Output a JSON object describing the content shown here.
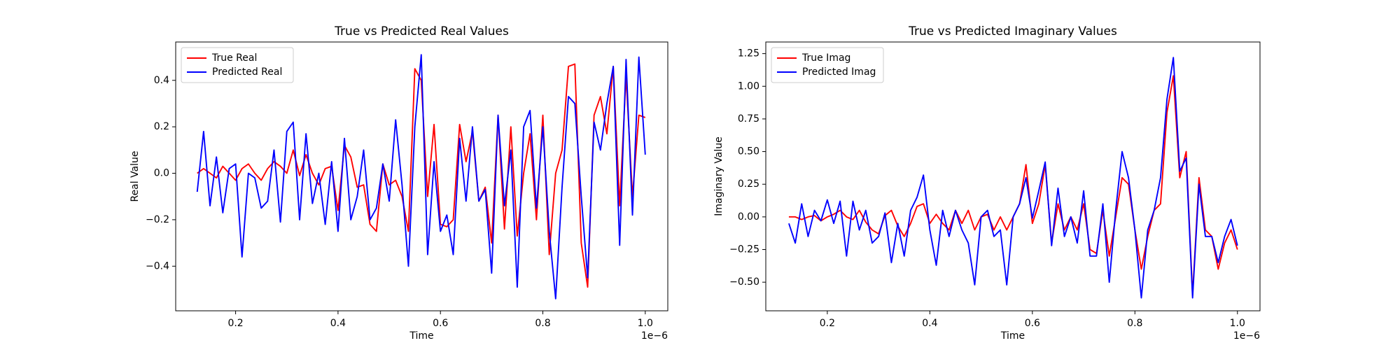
{
  "chart_data": [
    {
      "type": "line",
      "title": "True vs Predicted Real Values",
      "xlabel": "Time",
      "ylabel": "Real Value",
      "x_offset_label": "1e−6",
      "legend": "upper left",
      "x": [
        0.125,
        0.1375,
        0.15,
        0.1625,
        0.175,
        0.1875,
        0.2,
        0.2125,
        0.225,
        0.2375,
        0.25,
        0.2625,
        0.275,
        0.2875,
        0.3,
        0.3125,
        0.325,
        0.3375,
        0.35,
        0.3625,
        0.375,
        0.3875,
        0.4,
        0.4125,
        0.425,
        0.4375,
        0.45,
        0.4625,
        0.475,
        0.4875,
        0.5,
        0.5125,
        0.525,
        0.5375,
        0.55,
        0.5625,
        0.575,
        0.5875,
        0.6,
        0.6125,
        0.625,
        0.6375,
        0.65,
        0.6625,
        0.675,
        0.6875,
        0.7,
        0.7125,
        0.725,
        0.7375,
        0.75,
        0.7625,
        0.775,
        0.7875,
        0.8,
        0.8125,
        0.825,
        0.8375,
        0.85,
        0.8625,
        0.875,
        0.8875,
        0.9,
        0.9125,
        0.925,
        0.9375,
        0.95,
        0.9625,
        0.975,
        0.9875,
        1.0
      ],
      "series": [
        {
          "name": "True Real",
          "color": "#ff0000",
          "values": [
            0.0,
            0.02,
            0.0,
            -0.02,
            0.03,
            0.0,
            -0.03,
            0.02,
            0.04,
            0.0,
            -0.03,
            0.02,
            0.05,
            0.03,
            0.0,
            0.1,
            -0.01,
            0.08,
            0.0,
            -0.05,
            0.02,
            0.03,
            -0.16,
            0.12,
            0.07,
            -0.06,
            -0.05,
            -0.22,
            -0.25,
            0.04,
            -0.05,
            -0.03,
            -0.1,
            -0.25,
            0.45,
            0.4,
            -0.1,
            0.21,
            -0.22,
            -0.23,
            -0.2,
            0.21,
            0.05,
            0.18,
            -0.12,
            -0.06,
            -0.3,
            0.25,
            -0.24,
            0.2,
            -0.27,
            0.0,
            0.17,
            -0.2,
            0.25,
            -0.35,
            0.0,
            0.1,
            0.46,
            0.47,
            -0.3,
            -0.49,
            0.25,
            0.33,
            0.17,
            0.46,
            -0.14,
            0.42,
            -0.1,
            0.25,
            0.24
          ]
        },
        {
          "name": "Predicted Real",
          "color": "#0000ff",
          "values": [
            -0.08,
            0.18,
            -0.14,
            0.07,
            -0.17,
            0.02,
            0.04,
            -0.36,
            0.0,
            -0.02,
            -0.15,
            -0.12,
            0.1,
            -0.21,
            0.18,
            0.22,
            -0.2,
            0.17,
            -0.13,
            0.0,
            -0.22,
            0.05,
            -0.25,
            0.15,
            -0.2,
            -0.1,
            0.1,
            -0.2,
            -0.15,
            0.04,
            -0.12,
            0.23,
            -0.05,
            -0.4,
            0.2,
            0.51,
            -0.35,
            0.05,
            -0.25,
            -0.18,
            -0.35,
            0.15,
            -0.12,
            0.2,
            -0.12,
            -0.07,
            -0.43,
            0.25,
            -0.14,
            0.1,
            -0.49,
            0.2,
            0.27,
            -0.15,
            0.2,
            -0.25,
            -0.54,
            -0.06,
            0.33,
            0.3,
            -0.1,
            -0.45,
            0.22,
            0.1,
            0.3,
            0.46,
            -0.31,
            0.49,
            -0.18,
            0.5,
            0.08
          ]
        }
      ],
      "xlim": [
        0.083,
        1.044
      ],
      "ylim": [
        -0.592,
        0.565
      ],
      "xticks": [
        0.2,
        0.4,
        0.6,
        0.8,
        {
          "value": 1.0,
          "label": "1.0"
        }
      ],
      "yticks": [
        {
          "value": -0.4,
          "label": "−0.4"
        },
        {
          "value": -0.2,
          "label": "−0.2"
        },
        {
          "value": 0,
          "label": "0.0"
        },
        0.2,
        0.4
      ]
    },
    {
      "type": "line",
      "title": "True vs Predicted Imaginary Values",
      "xlabel": "Time",
      "ylabel": "Imaginary Value",
      "x_offset_label": "1e−6",
      "legend": "upper left",
      "x": [
        0.125,
        0.1375,
        0.15,
        0.1625,
        0.175,
        0.1875,
        0.2,
        0.2125,
        0.225,
        0.2375,
        0.25,
        0.2625,
        0.275,
        0.2875,
        0.3,
        0.3125,
        0.325,
        0.3375,
        0.35,
        0.3625,
        0.375,
        0.3875,
        0.4,
        0.4125,
        0.425,
        0.4375,
        0.45,
        0.4625,
        0.475,
        0.4875,
        0.5,
        0.5125,
        0.525,
        0.5375,
        0.55,
        0.5625,
        0.575,
        0.5875,
        0.6,
        0.6125,
        0.625,
        0.6375,
        0.65,
        0.6625,
        0.675,
        0.6875,
        0.7,
        0.7125,
        0.725,
        0.7375,
        0.75,
        0.7625,
        0.775,
        0.7875,
        0.8,
        0.8125,
        0.825,
        0.8375,
        0.85,
        0.8625,
        0.875,
        0.8875,
        0.9,
        0.9125,
        0.925,
        0.9375,
        0.95,
        0.9625,
        0.975,
        0.9875,
        1.0
      ],
      "series": [
        {
          "name": "True Imag",
          "color": "#ff0000",
          "values": [
            0.0,
            0.0,
            -0.02,
            0.0,
            0.01,
            -0.03,
            0.0,
            0.02,
            0.05,
            0.0,
            -0.02,
            0.05,
            -0.04,
            -0.1,
            -0.13,
            0.01,
            0.05,
            -0.07,
            -0.15,
            -0.05,
            0.08,
            0.1,
            -0.05,
            0.02,
            -0.05,
            -0.1,
            0.05,
            -0.05,
            0.05,
            -0.1,
            0.0,
            0.02,
            -0.1,
            0.0,
            -0.1,
            0.0,
            0.1,
            0.4,
            -0.05,
            0.1,
            0.4,
            -0.2,
            0.1,
            -0.1,
            0.0,
            -0.1,
            0.1,
            -0.25,
            -0.28,
            0.05,
            -0.3,
            0.0,
            0.3,
            0.25,
            -0.1,
            -0.4,
            -0.15,
            0.05,
            0.1,
            0.8,
            1.08,
            0.3,
            0.5,
            -0.6,
            0.3,
            -0.1,
            -0.15,
            -0.4,
            -0.2,
            -0.1,
            -0.25
          ]
        },
        {
          "name": "Predicted Imag",
          "color": "#0000ff",
          "values": [
            -0.05,
            -0.2,
            0.1,
            -0.15,
            0.05,
            -0.03,
            0.13,
            -0.05,
            0.12,
            -0.3,
            0.12,
            -0.1,
            0.05,
            -0.2,
            -0.15,
            0.03,
            -0.35,
            -0.05,
            -0.3,
            0.05,
            0.15,
            0.32,
            -0.1,
            -0.37,
            0.05,
            -0.15,
            0.05,
            -0.1,
            -0.2,
            -0.52,
            0.0,
            0.05,
            -0.15,
            -0.1,
            -0.52,
            0.0,
            0.1,
            0.3,
            -0.01,
            0.2,
            0.42,
            -0.22,
            0.22,
            -0.15,
            0.0,
            -0.2,
            0.2,
            -0.3,
            -0.3,
            0.1,
            -0.5,
            0.05,
            0.5,
            0.3,
            -0.1,
            -0.62,
            -0.1,
            0.05,
            0.3,
            0.9,
            1.22,
            0.35,
            0.45,
            -0.62,
            0.25,
            -0.15,
            -0.15,
            -0.35,
            -0.15,
            -0.02,
            -0.22
          ]
        }
      ],
      "xlim": [
        0.08,
        1.044
      ],
      "ylim": [
        -0.719,
        1.339
      ],
      "xticks": [
        0.2,
        0.4,
        0.6,
        0.8,
        {
          "value": 1.0,
          "label": "1.0"
        }
      ],
      "yticks": [
        {
          "value": -0.5,
          "label": "−0.50"
        },
        {
          "value": -0.25,
          "label": "−0.25"
        },
        {
          "value": 0,
          "label": "0.00"
        },
        0.25,
        {
          "value": 0.5,
          "label": "0.50"
        },
        0.75,
        {
          "value": 1.0,
          "label": "1.00"
        },
        1.25
      ]
    }
  ]
}
